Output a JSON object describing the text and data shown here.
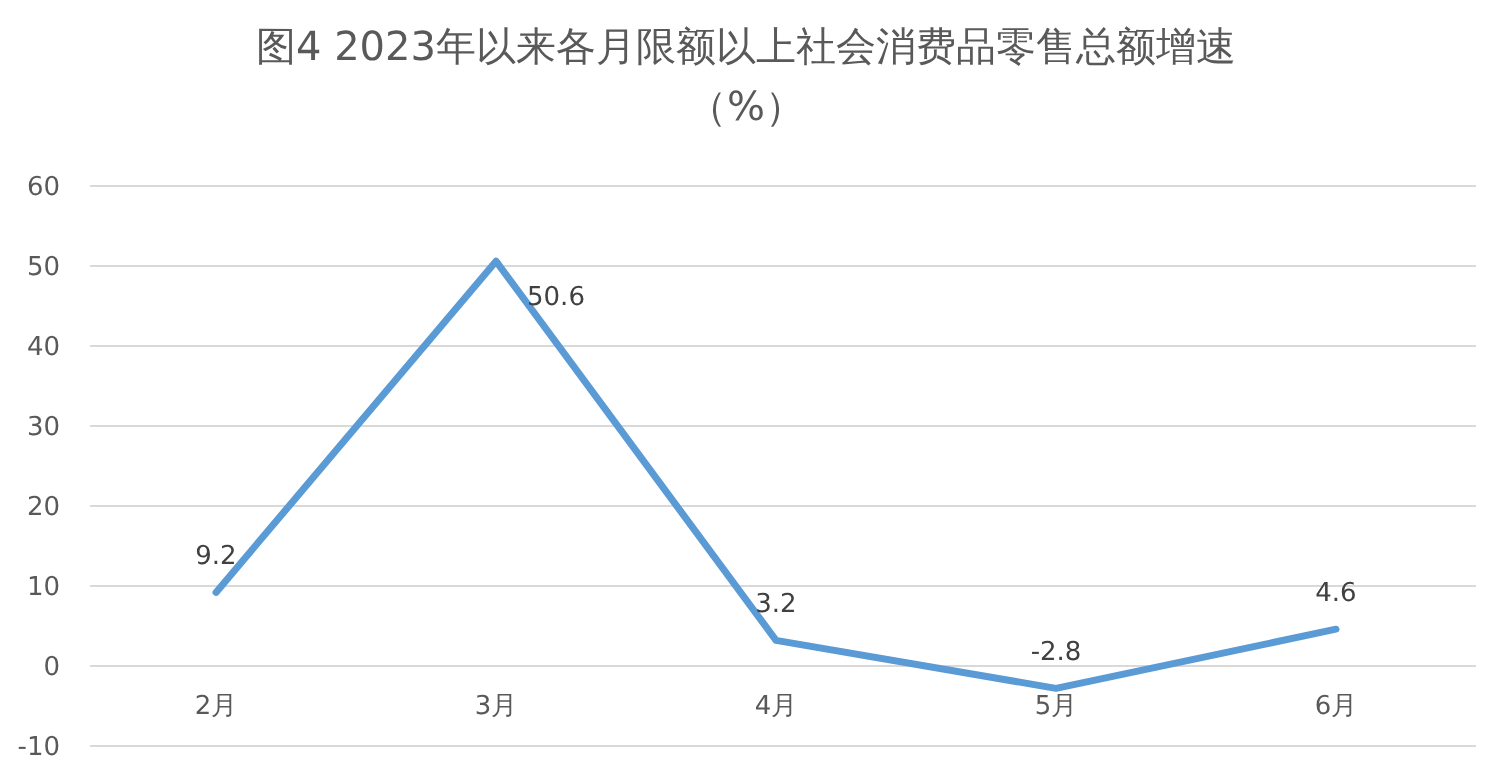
{
  "chart_data": {
    "type": "line",
    "title": "图4 2023年以来各月限额以上社会消费品零售总额增速（%）",
    "categories": [
      "2月",
      "3月",
      "4月",
      "5月",
      "6月"
    ],
    "series": [
      {
        "color": "#5b9bd5",
        "values": [
          9.2,
          50.6,
          3.2,
          -2.8,
          4.6
        ]
      }
    ],
    "ylim": [
      -10,
      60
    ],
    "yticks": [
      -10,
      0,
      10,
      20,
      30,
      40,
      50,
      60
    ],
    "grid": "y",
    "data_labels": true,
    "marker": "none",
    "line_style": "solid"
  }
}
